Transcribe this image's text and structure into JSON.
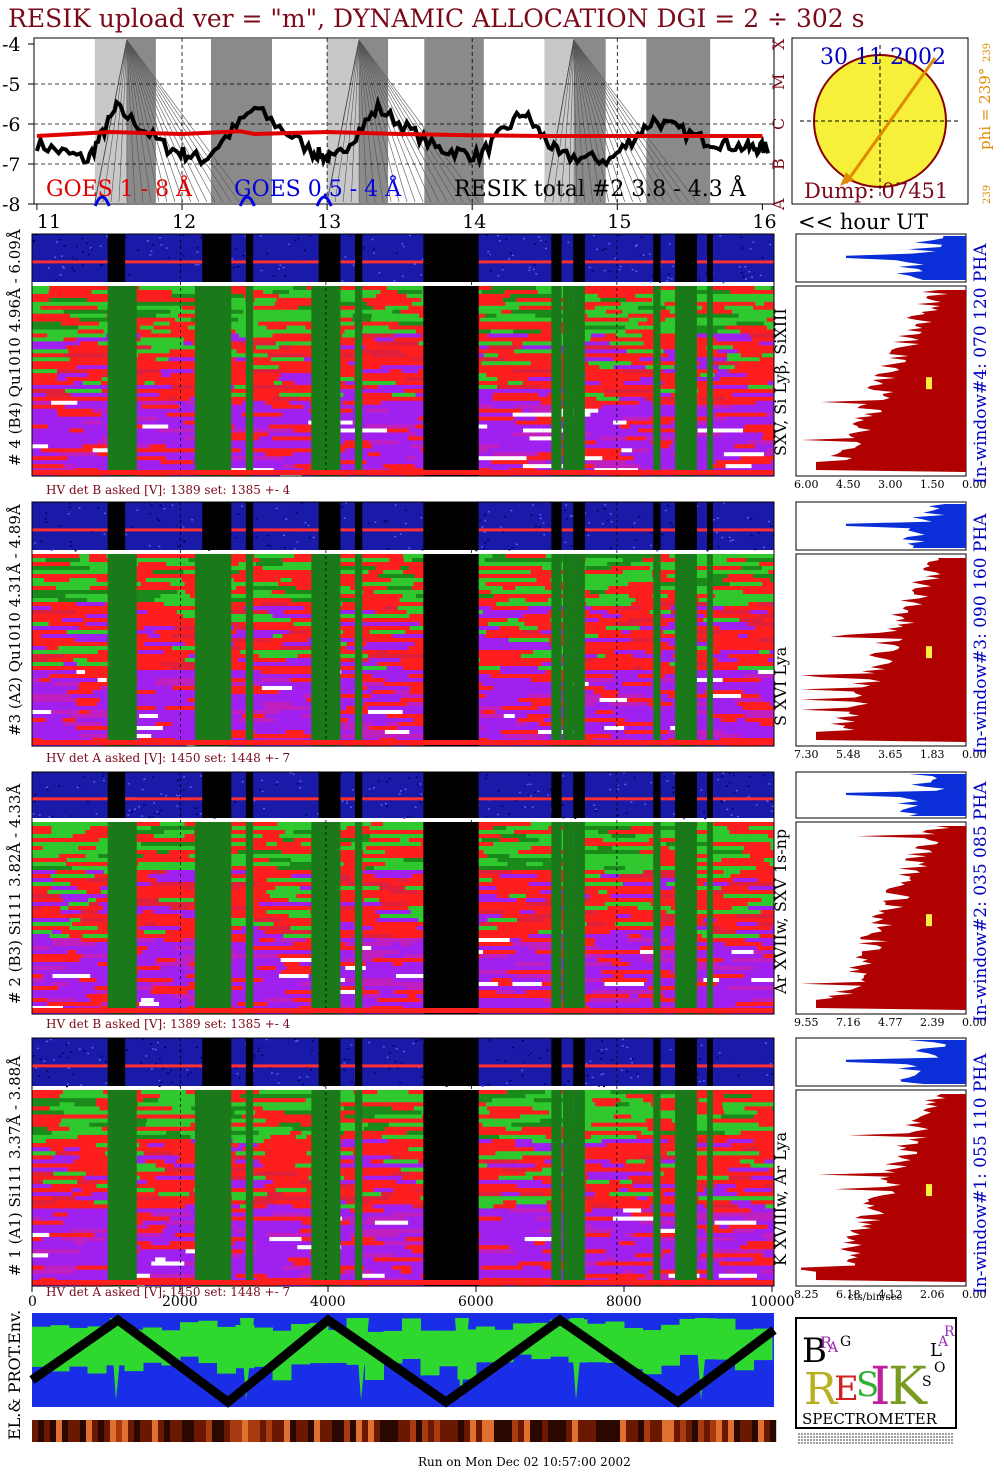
{
  "header": {
    "title": "RESIK upload ver = \"m\", DYNAMIC ALLOCATION  DGI =   2 ÷ 302 s",
    "footer": "Run on Mon Dec 02 10:57:00 2002"
  },
  "goes": {
    "legend_goes_long": "GOES 1 - 8 Å",
    "legend_goes_short": "GOES 0.5 - 4 Å",
    "legend_resik": "RESIK total #2  3.8 - 4.3 Å",
    "y_ticks": [
      "-4",
      "-5",
      "-6",
      "-7",
      "-8"
    ],
    "flare_classes": [
      "X",
      "M",
      "C",
      "B",
      "A"
    ],
    "x_ticks": [
      "11",
      "12",
      "13",
      "14",
      "15",
      "16"
    ],
    "hour_label": "<< hour UT"
  },
  "sun": {
    "date": "30 11 2002",
    "dump": "Dump: 07451",
    "phi": "phi = 239°",
    "phi_top": "239",
    "phi_bottom": "239"
  },
  "detectors": [
    {
      "label": "# 4 (B4) Qu1010 4.96Å - 6.09Å",
      "right_label": "SXV, Si Lyβ, SiXIII",
      "window": "In-window#4:  070 120 PHA",
      "hv": "HV det B asked [V]:   1389 set:   1385  +-    4",
      "profile_ticks": [
        "6.00",
        "4.50",
        "3.00",
        "1.50",
        "0.00"
      ]
    },
    {
      "label": "#3 (A2) Qu1010  4.31Å - 4.89Å",
      "right_label": "S XVI Lya",
      "window": "In-window#3:  090 160 PHA",
      "hv": "HV det A asked [V]:   1450 set:   1448  +-    7",
      "profile_ticks": [
        "7.30",
        "5.48",
        "3.65",
        "1.83",
        "0.00"
      ]
    },
    {
      "label": "# 2 (B3) Si111  3.82Å - 4.33Å",
      "right_label": "Ar XVIIw, SXV 1s-np",
      "window": "In-window#2:  035 085 PHA",
      "hv": "HV det B asked [V]:   1389 set:   1385  +-    4",
      "profile_ticks": [
        "9.55",
        "7.16",
        "4.77",
        "2.39",
        "0.00"
      ]
    },
    {
      "label": "# 1 (A1) Si111  3.37Å - 3.88Å",
      "right_label": "K XVIIIw, Ar Lya",
      "window": "In-window#1:  055 110 PHA",
      "hv": "HV det A asked [V]:   1450 set:   1448  +-    7",
      "profile_ticks": [
        "8.25",
        "6.18",
        "4.12",
        "2.06",
        "0.00"
      ]
    }
  ],
  "bottom": {
    "x_ticks": [
      "0",
      "2000",
      "4000",
      "6000",
      "8000",
      "10000"
    ],
    "units": "cts/bin/sec",
    "env_label": "EL.& PROT.Env."
  },
  "logo": {
    "letters": [
      "B",
      "R",
      "A",
      "G",
      "R",
      "E",
      "S",
      "I",
      "K",
      "S",
      "O",
      "L",
      "A",
      "R"
    ],
    "caption": "SPECTROMETER"
  },
  "colors": {
    "title": "#7a0a1a",
    "goes_long": "#e00000",
    "goes_short": "#0000e0",
    "sun_fill": "#f7f03a",
    "profile_fill": "#b00000",
    "pha_fill": "#0a2fd8",
    "bright": "#ff2020",
    "mid": "#a020f0",
    "green": "#1fbf1f"
  },
  "chart_data": {
    "type": "line",
    "title": "RESIK upload ver = \"m\", DYNAMIC ALLOCATION  DGI =   2 ÷ 302 s",
    "xlabel": "hour UT",
    "xlim": [
      10.98,
      16.08
    ],
    "ylim": [
      -8,
      -3.85
    ],
    "series": [
      {
        "name": "GOES 1 - 8 Å",
        "x": [
          11.0,
          11.5,
          12.0,
          12.4,
          12.5,
          13.0,
          13.5,
          14.0,
          14.5,
          15.0,
          15.5,
          16.0
        ],
        "values": [
          -6.3,
          -6.2,
          -6.25,
          -6.18,
          -6.25,
          -6.2,
          -6.25,
          -6.28,
          -6.3,
          -6.3,
          -6.3,
          -6.3
        ]
      },
      {
        "name": "RESIK total #2  3.8 - 4.3 Å",
        "x": [
          11.0,
          11.35,
          11.55,
          11.9,
          12.15,
          12.5,
          12.9,
          13.05,
          13.35,
          13.75,
          14.05,
          14.35,
          14.6,
          14.95,
          15.25,
          15.6,
          15.9,
          16.05
        ],
        "values": [
          -6.5,
          -6.9,
          -5.6,
          -6.6,
          -6.9,
          -5.6,
          -6.7,
          -6.9,
          -5.6,
          -6.6,
          -6.8,
          -5.7,
          -6.8,
          -6.9,
          -5.9,
          -6.4,
          -6.6,
          -6.6
        ]
      }
    ]
  }
}
